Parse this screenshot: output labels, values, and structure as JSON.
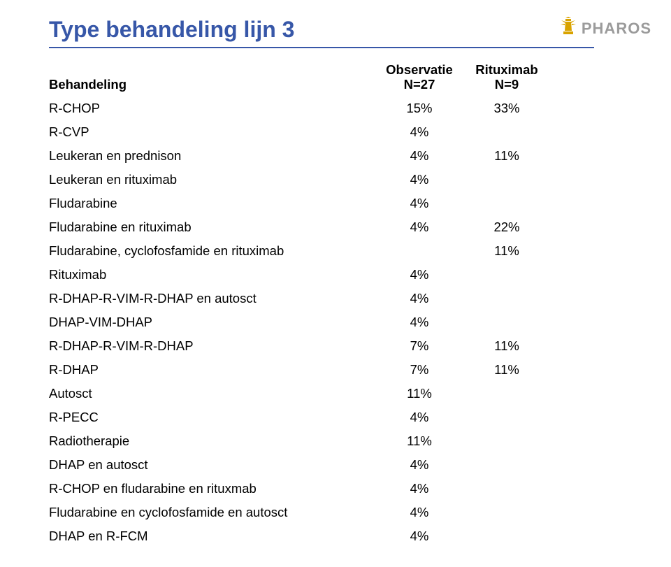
{
  "logo": {
    "text": "PHAROS",
    "text_color": "#9b9b9b",
    "icon_color": "#d9a300"
  },
  "title": {
    "text": "Type behandeling lijn 3",
    "color": "#3757a8",
    "fontsize": 32
  },
  "table": {
    "header": {
      "label": "Behandeling",
      "col1_line1": "Observatie",
      "col1_line2": "N=27",
      "col2_line1": "Rituximab",
      "col2_line2": "N=9"
    },
    "rows": [
      {
        "label": "R-CHOP",
        "obs": "15%",
        "rit": "33%"
      },
      {
        "label": "R-CVP",
        "obs": "4%",
        "rit": ""
      },
      {
        "label": "Leukeran en prednison",
        "obs": "4%",
        "rit": "11%"
      },
      {
        "label": "Leukeran en rituximab",
        "obs": "4%",
        "rit": ""
      },
      {
        "label": "Fludarabine",
        "obs": "4%",
        "rit": ""
      },
      {
        "label": "Fludarabine en rituximab",
        "obs": "4%",
        "rit": "22%"
      },
      {
        "label": "Fludarabine, cyclofosfamide en rituximab",
        "obs": "",
        "rit": "11%"
      },
      {
        "label": "Rituximab",
        "obs": "4%",
        "rit": ""
      },
      {
        "label": "R-DHAP-R-VIM-R-DHAP en autosct",
        "obs": "4%",
        "rit": ""
      },
      {
        "label": "DHAP-VIM-DHAP",
        "obs": "4%",
        "rit": ""
      },
      {
        "label": "R-DHAP-R-VIM-R-DHAP",
        "obs": "7%",
        "rit": "11%"
      },
      {
        "label": "R-DHAP",
        "obs": "7%",
        "rit": "11%"
      },
      {
        "label": "Autosct",
        "obs": "11%",
        "rit": ""
      },
      {
        "label": "R-PECC",
        "obs": "4%",
        "rit": ""
      },
      {
        "label": "Radiotherapie",
        "obs": "11%",
        "rit": ""
      },
      {
        "label": "DHAP en autosct",
        "obs": "4%",
        "rit": ""
      },
      {
        "label": "R-CHOP en fludarabine en rituxmab",
        "obs": "4%",
        "rit": ""
      },
      {
        "label": "Fludarabine en cyclofosfamide en autosct",
        "obs": "4%",
        "rit": ""
      },
      {
        "label": "DHAP en R-FCM",
        "obs": "4%",
        "rit": ""
      }
    ],
    "fontsize": 18.5,
    "text_color": "#000000"
  },
  "colors": {
    "background": "#ffffff",
    "title_underline": "#3757a8"
  }
}
